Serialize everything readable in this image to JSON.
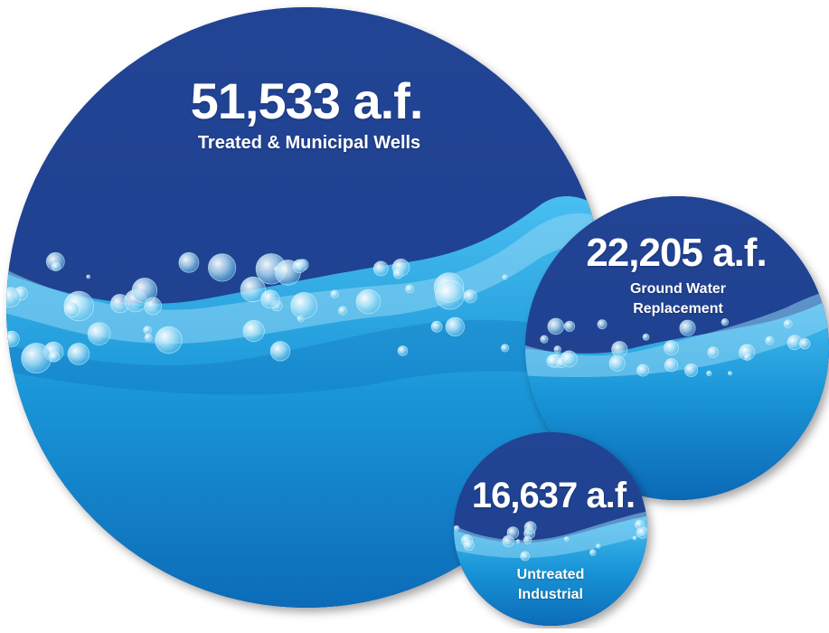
{
  "colors": {
    "deep_blue": "#1c3e8c",
    "mid_blue": "#2a6cc0",
    "water_light": "#3fb6ea",
    "water_mid": "#1a8fd4",
    "water_dark": "#0e6fba",
    "bubble": "#d9f2fd",
    "text": "#ffffff"
  },
  "chart_data": {
    "type": "bubble",
    "unit": "a.f.",
    "items": [
      {
        "value": 51533,
        "value_label": "51,533 a.f.",
        "caption": "Treated & Municipal Wells"
      },
      {
        "value": 22205,
        "value_label": "22,205 a.f.",
        "caption_line1": "Ground Water",
        "caption_line2": "Replacement"
      },
      {
        "value": 16637,
        "value_label": "16,637 a.f.",
        "caption_line1": "Untreated",
        "caption_line2": "Industrial"
      }
    ]
  }
}
